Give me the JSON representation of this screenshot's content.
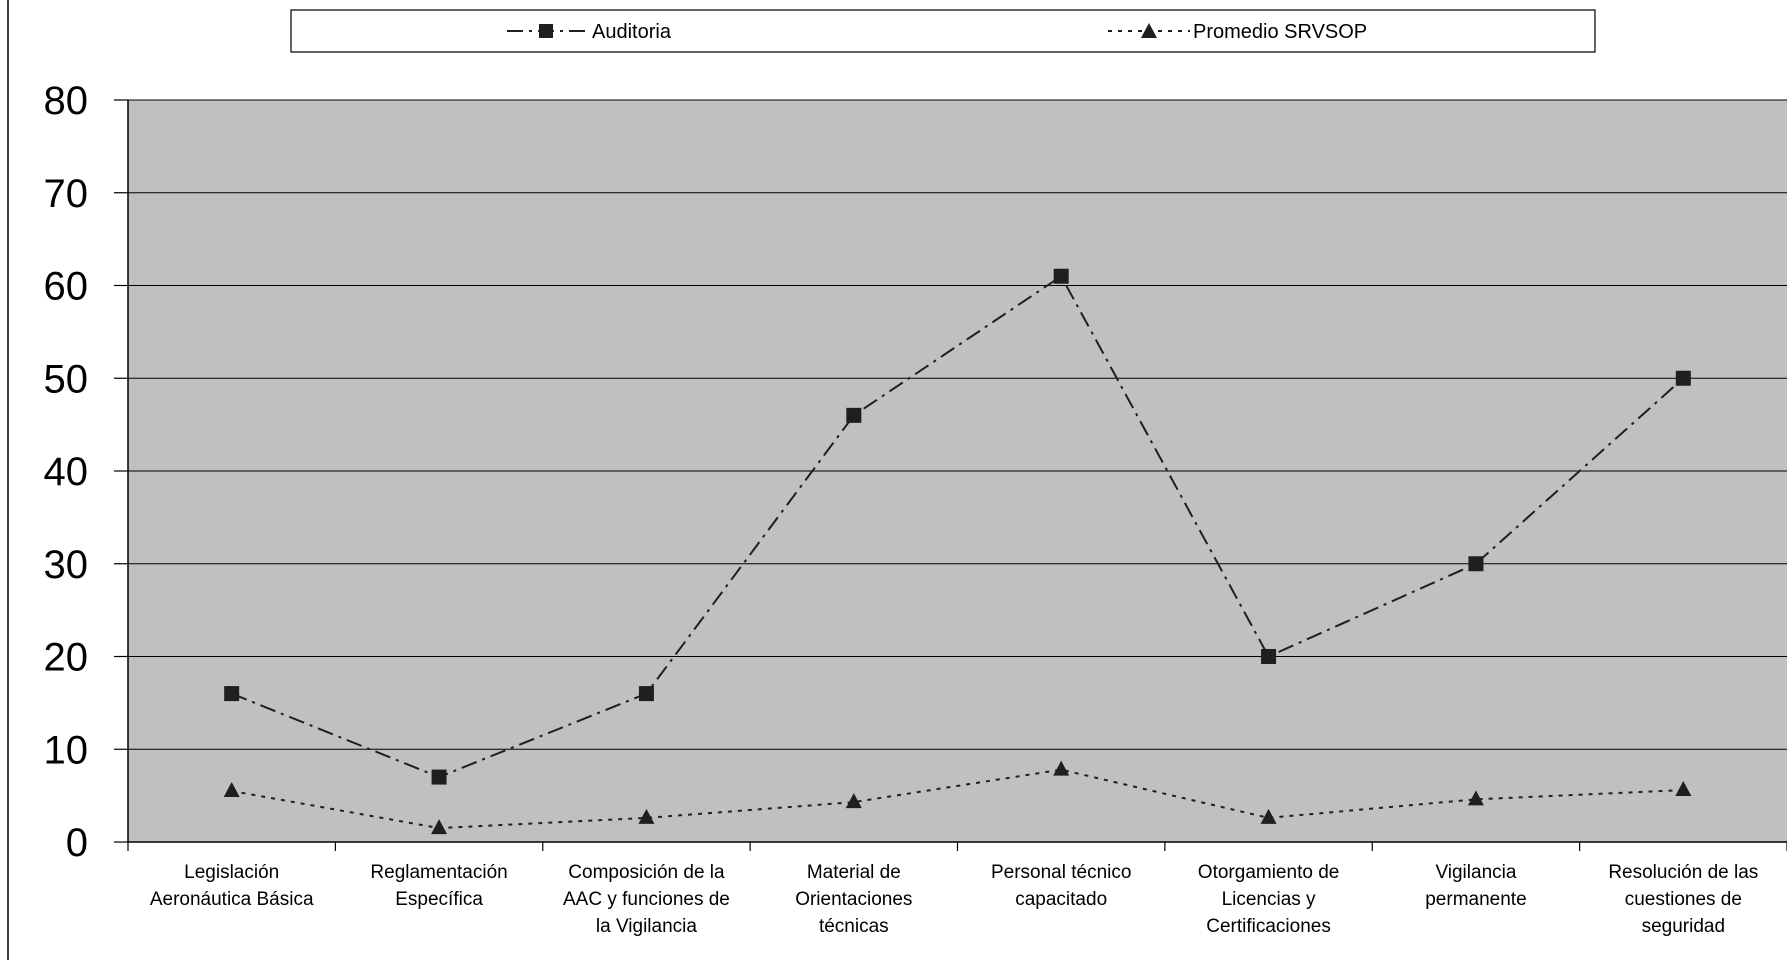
{
  "chart_data": {
    "type": "line",
    "categories": [
      [
        "Legislación",
        "Aeronáutica Básica"
      ],
      [
        "Reglamentación",
        "Específica"
      ],
      [
        "Composición de la",
        "AAC y funciones de",
        "la Vigilancia"
      ],
      [
        "Material de",
        "Orientaciones",
        "técnicas"
      ],
      [
        "Personal técnico",
        "capacitado"
      ],
      [
        "Otorgamiento de",
        "Licencias y",
        "Certificaciones"
      ],
      [
        "Vigilancia",
        "permanente"
      ],
      [
        "Resolución de las",
        "cuestiones de",
        "seguridad"
      ]
    ],
    "series": [
      {
        "name": "Auditoria",
        "marker": "square",
        "line_style": "dash-dot",
        "values": [
          16,
          7,
          16,
          46,
          61,
          20,
          30,
          50
        ]
      },
      {
        "name": "Promedio SRVSOP",
        "marker": "triangle",
        "line_style": "dotted",
        "values": [
          5.5,
          1.5,
          2.6,
          4.3,
          7.8,
          2.6,
          4.6,
          5.6
        ]
      }
    ],
    "yticks": [
      0,
      10,
      20,
      30,
      40,
      50,
      60,
      70,
      80
    ],
    "ylim": [
      0,
      80
    ],
    "grid": true,
    "legend_position": "top",
    "colors": {
      "plot_background": "#c0c0c0",
      "lines": "#1f1f1f",
      "grid": "#000000"
    }
  }
}
